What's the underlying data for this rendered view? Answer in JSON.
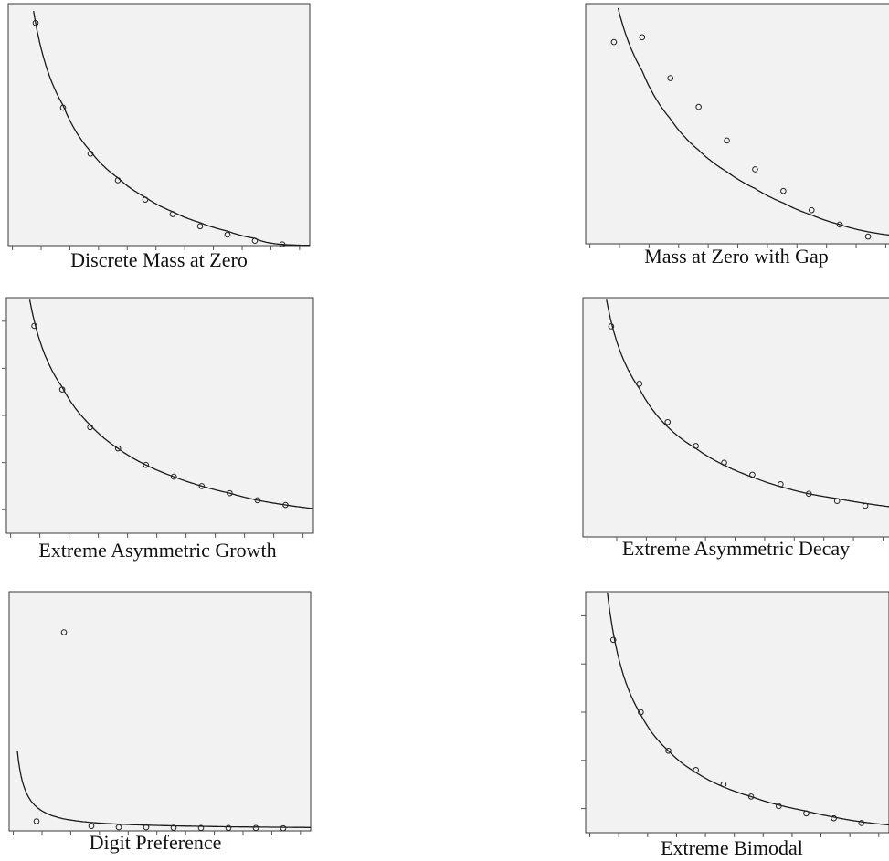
{
  "chart_data": [
    {
      "type": "scatter",
      "title": "Discrete Mass at Zero",
      "x": [
        1,
        2,
        3,
        4,
        5,
        6,
        7,
        8,
        9,
        10
      ],
      "points": [
        0.92,
        0.57,
        0.38,
        0.27,
        0.19,
        0.13,
        0.08,
        0.045,
        0.02,
        0.005
      ],
      "curve": [
        0.92,
        0.58,
        0.39,
        0.28,
        0.2,
        0.14,
        0.095,
        0.06,
        0.03,
        0.005
      ],
      "xlim": [
        0,
        11
      ],
      "ylim": [
        0,
        1
      ],
      "ticks": {
        "bottom": 11,
        "left": 0,
        "right": 0
      }
    },
    {
      "type": "scatter",
      "title": "Mass at Zero with Gap",
      "x": [
        1,
        2,
        3,
        4,
        5,
        6,
        7,
        8,
        9,
        10
      ],
      "points": [
        0.84,
        0.86,
        0.69,
        0.57,
        0.43,
        0.31,
        0.22,
        0.14,
        0.08,
        0.03
      ],
      "curve": [
        1.06,
        0.72,
        0.52,
        0.39,
        0.3,
        0.23,
        0.17,
        0.12,
        0.08,
        0.05
      ],
      "xlim": [
        0,
        11
      ],
      "ylim": [
        0,
        1
      ],
      "ticks": {
        "bottom": 11,
        "left": 0,
        "right": 0
      }
    },
    {
      "type": "scatter",
      "title": "Extreme Asymmetric Growth",
      "x": [
        1,
        2,
        3,
        4,
        5,
        6,
        7,
        8,
        9,
        10
      ],
      "points": [
        0.88,
        0.61,
        0.45,
        0.36,
        0.29,
        0.24,
        0.2,
        0.17,
        0.14,
        0.12
      ],
      "curve": [
        0.9,
        0.62,
        0.46,
        0.36,
        0.29,
        0.24,
        0.2,
        0.17,
        0.14,
        0.12
      ],
      "xlim": [
        0,
        11
      ],
      "ylim": [
        0,
        1
      ],
      "ticks": {
        "bottom": 11,
        "left": 5,
        "right": 0
      }
    },
    {
      "type": "scatter",
      "title": "Extreme Asymmetric Decay",
      "x": [
        1,
        2,
        3,
        4,
        5,
        6,
        7,
        8,
        9,
        10
      ],
      "points": [
        0.88,
        0.64,
        0.48,
        0.38,
        0.31,
        0.26,
        0.22,
        0.18,
        0.15,
        0.13
      ],
      "curve": [
        0.9,
        0.62,
        0.46,
        0.37,
        0.3,
        0.25,
        0.21,
        0.18,
        0.16,
        0.14
      ],
      "xlim": [
        0,
        11
      ],
      "ylim": [
        0,
        1
      ],
      "ticks": {
        "bottom": 11,
        "left": 0,
        "right": 0
      }
    },
    {
      "type": "scatter",
      "title": "Digit Preference",
      "x": [
        1,
        2,
        3,
        4,
        5,
        6,
        7,
        8,
        9,
        10
      ],
      "points": [
        0.04,
        0.83,
        0.02,
        0.015,
        0.015,
        0.013,
        0.012,
        0.012,
        0.012,
        0.011
      ],
      "curve": [
        0.1,
        0.05,
        0.035,
        0.028,
        0.024,
        0.021,
        0.019,
        0.017,
        0.016,
        0.015
      ],
      "xlim": [
        0,
        11
      ],
      "ylim": [
        0,
        1
      ],
      "ticks": {
        "bottom": 11,
        "left": 0,
        "right": 0
      }
    },
    {
      "type": "scatter",
      "title": "Extreme Bimodal",
      "x": [
        1,
        2,
        3,
        4,
        5,
        6,
        7,
        8,
        9,
        10
      ],
      "points": [
        0.8,
        0.5,
        0.34,
        0.26,
        0.2,
        0.15,
        0.11,
        0.08,
        0.06,
        0.04
      ],
      "curve": [
        0.83,
        0.49,
        0.34,
        0.25,
        0.19,
        0.15,
        0.115,
        0.09,
        0.065,
        0.045
      ],
      "xlim": [
        0,
        11
      ],
      "ylim": [
        0,
        1
      ],
      "ticks": {
        "bottom": 11,
        "left": 5,
        "right": 1
      }
    }
  ]
}
